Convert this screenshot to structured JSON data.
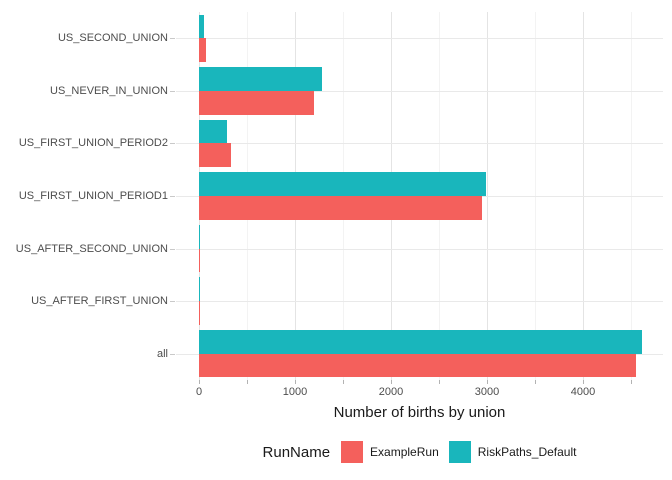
{
  "chart_data": {
    "type": "bar",
    "orientation": "horizontal",
    "title": "",
    "xlabel": "Number of births by union",
    "ylabel": "",
    "categories": [
      "US_SECOND_UNION",
      "US_NEVER_IN_UNION",
      "US_FIRST_UNION_PERIOD2",
      "US_FIRST_UNION_PERIOD1",
      "US_AFTER_SECOND_UNION",
      "US_AFTER_FIRST_UNION",
      "all"
    ],
    "series": [
      {
        "name": "ExampleRun",
        "color": "#F4605C",
        "values": [
          75,
          1200,
          330,
          2950,
          10,
          12,
          4550
        ]
      },
      {
        "name": "RiskPaths_Default",
        "color": "#19B6BC",
        "values": [
          55,
          1280,
          290,
          2985,
          10,
          12,
          4615
        ]
      }
    ],
    "x_ticks": [
      0,
      1000,
      2000,
      3000,
      4000
    ],
    "x_minor_ticks": [
      500,
      1500,
      2500,
      3500,
      4500
    ],
    "xlim": [
      -240,
      4833
    ],
    "grid": true,
    "legend": {
      "title": "RunName",
      "position": "bottom"
    }
  }
}
